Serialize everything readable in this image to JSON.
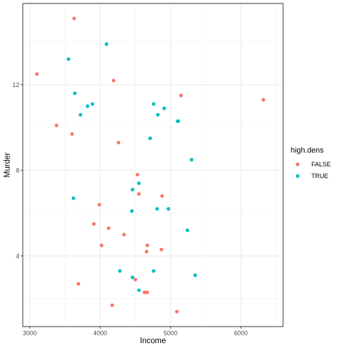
{
  "chart_data": {
    "type": "scatter",
    "xlabel": "Income",
    "ylabel": "Murder",
    "xlim": [
      2900,
      6600
    ],
    "ylim": [
      0.7,
      15.8
    ],
    "x_ticks": [
      3000,
      4000,
      5000,
      6000
    ],
    "y_ticks": [
      4,
      8,
      12
    ],
    "grid": true,
    "legend": {
      "title": "high.dens",
      "position": "right",
      "entries": [
        {
          "label": "FALSE",
          "color": "#F8766D"
        },
        {
          "label": "TRUE",
          "color": "#00BFC4"
        }
      ]
    },
    "series": [
      {
        "name": "FALSE",
        "color": "#F8766D",
        "points": [
          [
            3630,
            15.1
          ],
          [
            3100,
            12.5
          ],
          [
            4190,
            12.2
          ],
          [
            3380,
            10.1
          ],
          [
            3600,
            9.7
          ],
          [
            4260,
            9.3
          ],
          [
            5150,
            11.5
          ],
          [
            6320,
            11.3
          ],
          [
            4530,
            7.8
          ],
          [
            4880,
            6.8
          ],
          [
            4550,
            6.9
          ],
          [
            3990,
            6.4
          ],
          [
            3910,
            5.5
          ],
          [
            4120,
            5.3
          ],
          [
            4340,
            5.0
          ],
          [
            4020,
            4.5
          ],
          [
            4670,
            4.5
          ],
          [
            4660,
            4.2
          ],
          [
            4870,
            4.3
          ],
          [
            4500,
            2.9
          ],
          [
            3690,
            2.7
          ],
          [
            4630,
            2.3
          ],
          [
            4670,
            2.3
          ],
          [
            4170,
            1.7
          ],
          [
            5090,
            1.4
          ]
        ]
      },
      {
        "name": "TRUE",
        "color": "#00BFC4",
        "points": [
          [
            4090,
            13.9
          ],
          [
            3550,
            13.2
          ],
          [
            3640,
            11.6
          ],
          [
            3890,
            11.1
          ],
          [
            3820,
            11.0
          ],
          [
            3720,
            10.6
          ],
          [
            4760,
            11.1
          ],
          [
            4910,
            10.9
          ],
          [
            4820,
            10.6
          ],
          [
            5110,
            10.3
          ],
          [
            5100,
            10.3
          ],
          [
            4710,
            9.5
          ],
          [
            5300,
            8.5
          ],
          [
            4550,
            7.4
          ],
          [
            4460,
            7.1
          ],
          [
            3620,
            6.7
          ],
          [
            4450,
            6.1
          ],
          [
            4810,
            6.2
          ],
          [
            4970,
            6.2
          ],
          [
            5240,
            5.2
          ],
          [
            4280,
            3.3
          ],
          [
            4760,
            3.3
          ],
          [
            5350,
            3.1
          ],
          [
            4460,
            3.0
          ],
          [
            4550,
            2.4
          ]
        ]
      }
    ]
  }
}
